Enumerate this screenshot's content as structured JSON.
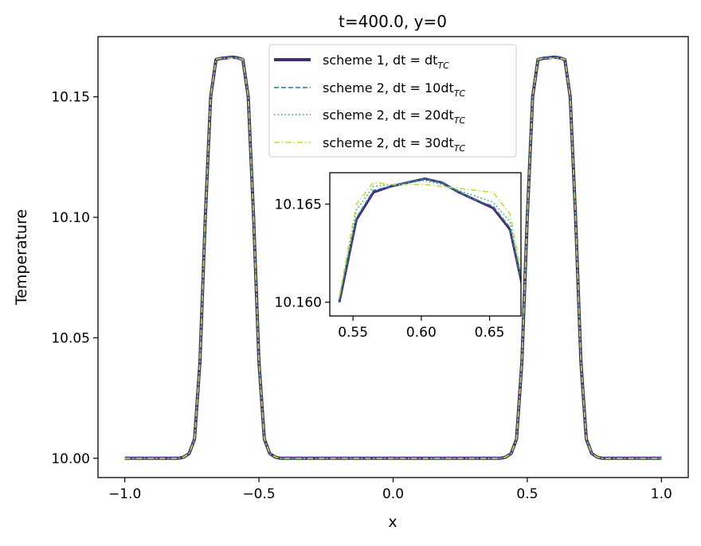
{
  "chart_data": {
    "type": "line",
    "title": "t=400.0, y=0",
    "xlabel": "x",
    "ylabel": "Temperature",
    "xlim": [
      -1.1,
      1.1
    ],
    "ylim": [
      9.992,
      10.175
    ],
    "xticks": [
      -1.0,
      -0.5,
      0.0,
      0.5,
      1.0
    ],
    "xtick_labels": [
      "−1.0",
      "−0.5",
      "0.0",
      "0.5",
      "1.0"
    ],
    "yticks": [
      10.0,
      10.05,
      10.1,
      10.15
    ],
    "ytick_labels": [
      "10.00",
      "10.05",
      "10.10",
      "10.15"
    ],
    "legend_position": "top-center",
    "x": [
      -1.0,
      -0.96,
      -0.92,
      -0.88,
      -0.84,
      -0.8,
      -0.78,
      -0.76,
      -0.74,
      -0.72,
      -0.7,
      -0.68,
      -0.66,
      -0.64,
      -0.62,
      -0.6,
      -0.58,
      -0.56,
      -0.54,
      -0.52,
      -0.5,
      -0.48,
      -0.46,
      -0.44,
      -0.42,
      -0.4,
      -0.36,
      -0.32,
      -0.28,
      -0.24,
      -0.2,
      -0.16,
      -0.12,
      -0.08,
      -0.04,
      0.0,
      0.04,
      0.08,
      0.12,
      0.16,
      0.2,
      0.24,
      0.28,
      0.32,
      0.36,
      0.4,
      0.42,
      0.44,
      0.46,
      0.48,
      0.5,
      0.52,
      0.54,
      0.56,
      0.58,
      0.6,
      0.62,
      0.64,
      0.66,
      0.68,
      0.7,
      0.72,
      0.74,
      0.76,
      0.78,
      0.8,
      0.84,
      0.88,
      0.92,
      0.96,
      1.0
    ],
    "series": [
      {
        "name": "scheme 1, dt = dt",
        "sub": "TC",
        "color": "#472c7a",
        "style": "solid",
        "values": [
          10.0,
          10.0,
          10.0,
          10.0,
          10.0,
          10.0,
          10.0005,
          10.002,
          10.008,
          10.04,
          10.1,
          10.15,
          10.1655,
          10.166,
          10.1662,
          10.1665,
          10.1662,
          10.1655,
          10.15,
          10.1,
          10.04,
          10.008,
          10.002,
          10.0005,
          10.0,
          10.0,
          10.0,
          10.0,
          10.0,
          10.0,
          10.0,
          10.0,
          10.0,
          10.0,
          10.0,
          10.0,
          10.0,
          10.0,
          10.0,
          10.0,
          10.0,
          10.0,
          10.0,
          10.0,
          10.0,
          10.0,
          10.0005,
          10.002,
          10.008,
          10.04,
          10.1,
          10.15,
          10.1655,
          10.166,
          10.1662,
          10.1665,
          10.1662,
          10.1655,
          10.15,
          10.1,
          10.04,
          10.008,
          10.002,
          10.0005,
          10.0,
          10.0,
          10.0,
          10.0,
          10.0,
          10.0,
          10.0
        ]
      },
      {
        "name": "scheme 2, dt = 10dt",
        "sub": "TC",
        "color": "#2a788e",
        "style": "dashed",
        "values": [
          10.0,
          10.0,
          10.0,
          10.0,
          10.0,
          10.0,
          10.0005,
          10.002,
          10.008,
          10.04,
          10.1,
          10.15,
          10.1655,
          10.166,
          10.1662,
          10.1665,
          10.1662,
          10.1655,
          10.15,
          10.1,
          10.04,
          10.008,
          10.002,
          10.0005,
          10.0,
          10.0,
          10.0,
          10.0,
          10.0,
          10.0,
          10.0,
          10.0,
          10.0,
          10.0,
          10.0,
          10.0,
          10.0,
          10.0,
          10.0,
          10.0,
          10.0,
          10.0,
          10.0,
          10.0,
          10.0,
          10.0,
          10.0005,
          10.002,
          10.008,
          10.04,
          10.1,
          10.15,
          10.1655,
          10.166,
          10.1662,
          10.1665,
          10.1662,
          10.1655,
          10.15,
          10.1,
          10.04,
          10.008,
          10.002,
          10.0005,
          10.0,
          10.0,
          10.0,
          10.0,
          10.0,
          10.0,
          10.0
        ]
      },
      {
        "name": "scheme 2, dt = 20dt",
        "sub": "TC",
        "color": "#22a884",
        "style": "dotted",
        "values": [
          10.0,
          10.0,
          10.0,
          10.0,
          10.0,
          10.0,
          10.0005,
          10.002,
          10.008,
          10.04,
          10.1,
          10.15,
          10.1655,
          10.166,
          10.1662,
          10.1665,
          10.1662,
          10.1655,
          10.15,
          10.1,
          10.04,
          10.008,
          10.002,
          10.0005,
          10.0,
          10.0,
          10.0,
          10.0,
          10.0,
          10.0,
          10.0,
          10.0,
          10.0,
          10.0,
          10.0,
          10.0,
          10.0,
          10.0,
          10.0,
          10.0,
          10.0,
          10.0,
          10.0,
          10.0,
          10.0,
          10.0,
          10.0005,
          10.002,
          10.008,
          10.04,
          10.1,
          10.15,
          10.1655,
          10.166,
          10.1662,
          10.1665,
          10.1662,
          10.1655,
          10.15,
          10.1,
          10.04,
          10.008,
          10.002,
          10.0005,
          10.0,
          10.0,
          10.0,
          10.0,
          10.0,
          10.0,
          10.0
        ]
      },
      {
        "name": "scheme 2, dt = 30dt",
        "sub": "TC",
        "color": "#c8dc2a",
        "style": "dashdot",
        "values": [
          10.0,
          10.0,
          10.0,
          10.0,
          10.0,
          10.0,
          10.0005,
          10.002,
          10.008,
          10.04,
          10.1,
          10.15,
          10.1656,
          10.166,
          10.166,
          10.166,
          10.166,
          10.1656,
          10.15,
          10.1,
          10.04,
          10.008,
          10.002,
          10.0005,
          10.0,
          10.0,
          10.0,
          10.0,
          10.0,
          10.0,
          10.0,
          10.0,
          10.0,
          10.0,
          10.0,
          10.0,
          10.0,
          10.0,
          10.0,
          10.0,
          10.0,
          10.0,
          10.0,
          10.0,
          10.0,
          10.0,
          10.0005,
          10.002,
          10.008,
          10.04,
          10.1,
          10.15,
          10.1656,
          10.166,
          10.166,
          10.166,
          10.166,
          10.1656,
          10.15,
          10.1,
          10.04,
          10.008,
          10.002,
          10.0005,
          10.0,
          10.0,
          10.0,
          10.0,
          10.0,
          10.0,
          10.0
        ]
      }
    ],
    "inset": {
      "xlim": [
        0.533,
        0.673
      ],
      "ylim": [
        10.1593,
        10.1666
      ],
      "xticks": [
        0.55,
        0.6,
        0.65
      ],
      "xtick_labels": [
        "0.55",
        "0.60",
        "0.65"
      ],
      "yticks": [
        10.16,
        10.165
      ],
      "ytick_labels": [
        "10.160",
        "10.165"
      ],
      "series": [
        {
          "x": [
            0.54,
            0.5525,
            0.565,
            0.5775,
            0.59,
            0.6025,
            0.615,
            0.6275,
            0.64,
            0.6525,
            0.665,
            0.6775
          ],
          "values": [
            10.16,
            10.1642,
            10.1656,
            10.1659,
            10.1661,
            10.1663,
            10.1661,
            10.1656,
            10.1652,
            10.1648,
            10.1637,
            10.1597
          ]
        },
        {
          "x": [
            0.54,
            0.5525,
            0.565,
            0.5775,
            0.59,
            0.6025,
            0.615,
            0.6275,
            0.64,
            0.6525,
            0.665,
            0.6775
          ],
          "values": [
            10.1601,
            10.1643,
            10.1657,
            10.1659,
            10.1661,
            10.1663,
            10.1661,
            10.1656,
            10.1652,
            10.1649,
            10.1638,
            10.1597
          ]
        },
        {
          "x": [
            0.54,
            0.5525,
            0.565,
            0.5775,
            0.59,
            0.6025,
            0.615,
            0.6275,
            0.64,
            0.6525,
            0.665,
            0.6775
          ],
          "values": [
            10.1602,
            10.1647,
            10.1659,
            10.166,
            10.1661,
            10.1662,
            10.166,
            10.1657,
            10.1654,
            10.1651,
            10.1641,
            10.1598
          ]
        },
        {
          "x": [
            0.54,
            0.5525,
            0.565,
            0.5775,
            0.59,
            0.6025,
            0.615,
            0.6275,
            0.64,
            0.6525,
            0.665,
            0.6775
          ],
          "values": [
            10.1603,
            10.165,
            10.1661,
            10.166,
            10.166,
            10.166,
            10.1659,
            10.1658,
            10.1657,
            10.1656,
            10.1645,
            10.16
          ]
        }
      ]
    }
  }
}
